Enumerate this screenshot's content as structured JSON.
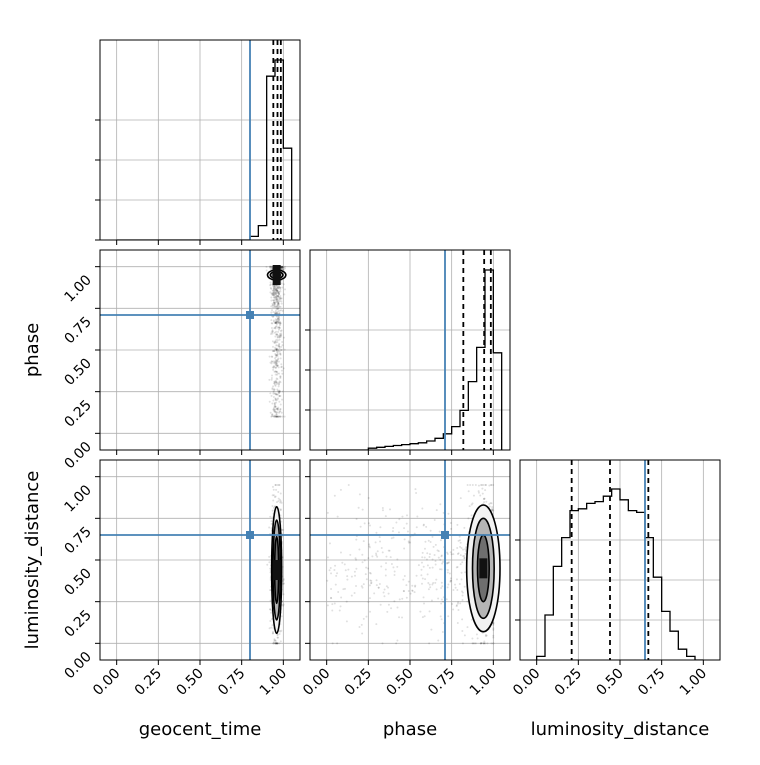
{
  "chart_data": {
    "type": "corner",
    "parameters": [
      "geocent_time",
      "phase",
      "luminosity_distance"
    ],
    "range": [
      -0.1,
      1.1
    ],
    "ticks": [
      "0.00",
      "0.25",
      "0.50",
      "0.75",
      "1.00"
    ],
    "tick_values": [
      0,
      0.25,
      0.5,
      0.75,
      1.0
    ],
    "grid": true,
    "truth_color": "#4682b4",
    "truths": [
      0.8,
      0.71,
      0.65
    ],
    "quantiles": [
      [
        0.94,
        0.965,
        0.985
      ],
      [
        0.82,
        0.945,
        0.985
      ],
      [
        0.21,
        0.44,
        0.67
      ]
    ],
    "histograms": [
      {
        "parameter": "geocent_time",
        "bin_edges": [
          0.0,
          0.05,
          0.1,
          0.15,
          0.2,
          0.25,
          0.3,
          0.35,
          0.4,
          0.45,
          0.5,
          0.55,
          0.6,
          0.65,
          0.7,
          0.75,
          0.8,
          0.85,
          0.9,
          0.95,
          1.0,
          1.05
        ],
        "counts": [
          0,
          0,
          0,
          0,
          0,
          0,
          0,
          0,
          0,
          0,
          0,
          0,
          0,
          0,
          0,
          0,
          0.02,
          0.08,
          0.91,
          1.0,
          0.51
        ]
      },
      {
        "parameter": "phase",
        "bin_edges": [
          0.0,
          0.05,
          0.1,
          0.15,
          0.2,
          0.25,
          0.3,
          0.35,
          0.4,
          0.45,
          0.5,
          0.55,
          0.6,
          0.65,
          0.7,
          0.75,
          0.8,
          0.85,
          0.9,
          0.95,
          1.0,
          1.05
        ],
        "counts": [
          0,
          0,
          0,
          0,
          0,
          0.01,
          0.015,
          0.02,
          0.025,
          0.03,
          0.035,
          0.04,
          0.05,
          0.065,
          0.09,
          0.13,
          0.22,
          0.38,
          0.57,
          1.0,
          0.54
        ]
      },
      {
        "parameter": "luminosity_distance",
        "bin_edges": [
          0.0,
          0.05,
          0.1,
          0.15,
          0.2,
          0.25,
          0.3,
          0.35,
          0.4,
          0.45,
          0.5,
          0.55,
          0.6,
          0.65,
          0.7,
          0.75,
          0.8,
          0.85,
          0.9,
          0.95,
          1.0
        ],
        "counts": [
          0.02,
          0.25,
          0.52,
          0.68,
          0.83,
          0.84,
          0.87,
          0.88,
          0.91,
          0.95,
          0.89,
          0.83,
          0.82,
          0.68,
          0.46,
          0.27,
          0.16,
          0.06,
          0.02,
          0.0
        ]
      }
    ],
    "contour_panels": [
      {
        "x": "geocent_time",
        "y": "phase",
        "scatter_extent": {
          "x": [
            0.8,
            1.01
          ],
          "y": [
            0.1,
            1.05
          ]
        },
        "density_peak": [
          0.96,
          0.95
        ],
        "contour_widths": [
          [
            0.055,
            0.03
          ],
          [
            0.038,
            0.02
          ],
          [
            0.022,
            0.011
          ]
        ]
      },
      {
        "x": "geocent_time",
        "y": "luminosity_distance",
        "scatter_extent": {
          "x": [
            0.85,
            1.01
          ],
          "y": [
            0.0,
            0.95
          ]
        },
        "density_peak": [
          0.96,
          0.44
        ],
        "contour_widths": [
          [
            0.03,
            0.38
          ],
          [
            0.022,
            0.3
          ],
          [
            0.012,
            0.2
          ]
        ]
      },
      {
        "x": "phase",
        "y": "luminosity_distance",
        "scatter_extent": {
          "x": [
            0.0,
            1.0
          ],
          "y": [
            0.0,
            0.95
          ]
        },
        "density_peak": [
          0.94,
          0.45
        ],
        "contour_widths": [
          [
            0.1,
            0.38
          ],
          [
            0.065,
            0.3
          ],
          [
            0.035,
            0.2
          ]
        ]
      }
    ]
  }
}
